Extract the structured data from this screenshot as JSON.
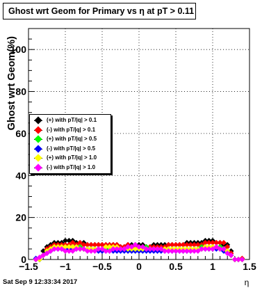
{
  "title": "Ghost wrt Geom for Primary vs   η at pT > 0.11",
  "footer": "Sat Sep  9 12:33:34 2017",
  "chart_data": {
    "type": "scatter",
    "title": "Ghost wrt Geom for Primary vs   η at pT > 0.11",
    "xlabel": "η",
    "ylabel": "Ghost wrt Geom(%)",
    "xlim": [
      -1.5,
      1.5
    ],
    "ylim": [
      0,
      110
    ],
    "x_ticks": [
      "−1.5",
      "−1",
      "−0.5",
      "0",
      "0.5",
      "1",
      "1.5"
    ],
    "y_ticks": [
      "0",
      "20",
      "40",
      "60",
      "80",
      "100"
    ],
    "x_tick_values": [
      -1.5,
      -1,
      -0.5,
      0,
      0.5,
      1,
      1.5
    ],
    "y_tick_values": [
      0,
      20,
      40,
      60,
      80,
      100
    ],
    "grid": true,
    "legend_position": "left-middle",
    "x": [
      -1.4,
      -1.35,
      -1.3,
      -1.25,
      -1.2,
      -1.15,
      -1.1,
      -1.05,
      -1.0,
      -0.95,
      -0.9,
      -0.85,
      -0.8,
      -0.75,
      -0.7,
      -0.65,
      -0.6,
      -0.55,
      -0.5,
      -0.45,
      -0.4,
      -0.35,
      -0.3,
      -0.25,
      -0.2,
      -0.15,
      -0.1,
      -0.05,
      0.0,
      0.05,
      0.1,
      0.15,
      0.2,
      0.25,
      0.3,
      0.35,
      0.4,
      0.45,
      0.5,
      0.55,
      0.6,
      0.65,
      0.7,
      0.75,
      0.8,
      0.85,
      0.9,
      0.95,
      1.0,
      1.05,
      1.1,
      1.15,
      1.2,
      1.25,
      1.3,
      1.35,
      1.4
    ],
    "series": [
      {
        "name": "(+) with pT/|q| > 0.1",
        "color": "#000000",
        "values": [
          0,
          0,
          4,
          6,
          7,
          8,
          8,
          8,
          9,
          9,
          9,
          8,
          8,
          8,
          7,
          7,
          7,
          7,
          7,
          7,
          7,
          7,
          7,
          6,
          6,
          7,
          7,
          7,
          7,
          7,
          6,
          6,
          7,
          7,
          7,
          7,
          7,
          7,
          7,
          7,
          7,
          8,
          8,
          8,
          8,
          8,
          9,
          9,
          9,
          8,
          8,
          7,
          7,
          4,
          0,
          0,
          0
        ]
      },
      {
        "name": "(-) with pT/|q| > 0.1",
        "color": "#ff0000",
        "values": [
          0,
          0,
          2,
          5,
          6,
          7,
          7,
          7,
          7,
          7,
          8,
          7,
          8,
          7,
          7,
          7,
          7,
          7,
          7,
          7,
          7,
          7,
          7,
          6,
          6,
          7,
          6,
          6,
          6,
          6,
          6,
          6,
          6,
          6,
          6,
          6,
          7,
          7,
          7,
          7,
          7,
          7,
          7,
          7,
          7,
          7,
          8,
          8,
          8,
          8,
          8,
          8,
          6,
          3,
          0,
          0,
          0.5
        ]
      },
      {
        "name": "(+) with pT/|q| > 0.5",
        "color": "#00ff00",
        "values": [
          0,
          0,
          2,
          4,
          5,
          6,
          6,
          6,
          5,
          6,
          6,
          6,
          6,
          5,
          5,
          5,
          5,
          5,
          5,
          5,
          6,
          5,
          5,
          5,
          5,
          5,
          5,
          5,
          5,
          6,
          6,
          5,
          5,
          5,
          5,
          5,
          5,
          5,
          5,
          5,
          5,
          5,
          5,
          5,
          5,
          6,
          6,
          6,
          6,
          6,
          6,
          5,
          4,
          2,
          0,
          0,
          0
        ]
      },
      {
        "name": "(-) with pT/|q| > 0.5",
        "color": "#0000ff",
        "values": [
          0.5,
          0,
          2,
          3,
          4,
          5,
          5,
          5,
          5,
          5,
          5,
          5,
          5,
          5,
          5,
          5,
          5,
          4,
          4,
          4,
          4,
          4,
          4,
          4,
          4,
          4,
          4,
          4,
          4,
          4,
          4,
          4,
          4,
          4,
          4,
          4,
          4,
          4,
          4,
          4,
          4,
          4,
          4,
          5,
          5,
          5,
          5,
          5,
          5,
          5,
          5,
          4,
          3,
          2,
          0,
          0,
          0
        ]
      },
      {
        "name": "(+) with pT/|q| > 1.0",
        "color": "#ffff00",
        "values": [
          0,
          0,
          2,
          4,
          5,
          6,
          6,
          6,
          6,
          6,
          6,
          6,
          5,
          5,
          5,
          5,
          5,
          5,
          5,
          6,
          6,
          6,
          6,
          5,
          5,
          5,
          5,
          5,
          5,
          5,
          5,
          5,
          5,
          5,
          5,
          5,
          5,
          5,
          5,
          5,
          5,
          5,
          5,
          5,
          5,
          5,
          6,
          6,
          6,
          6,
          5,
          5,
          4,
          2,
          0,
          0,
          0
        ]
      },
      {
        "name": "(-) with pT/|q| > 1.0",
        "color": "#ff00ff",
        "values": [
          0,
          1,
          2,
          3,
          4,
          5,
          5,
          5,
          4,
          4,
          4,
          5,
          5,
          5,
          4,
          4,
          4,
          5,
          5,
          4,
          4,
          5,
          5,
          5,
          5,
          6,
          6,
          7,
          6,
          6,
          5,
          5,
          5,
          5,
          5,
          4,
          4,
          4,
          4,
          4,
          4,
          4,
          4,
          4,
          4,
          5,
          5,
          5,
          5,
          6,
          5,
          5,
          3,
          2,
          0,
          0,
          0
        ]
      }
    ]
  }
}
